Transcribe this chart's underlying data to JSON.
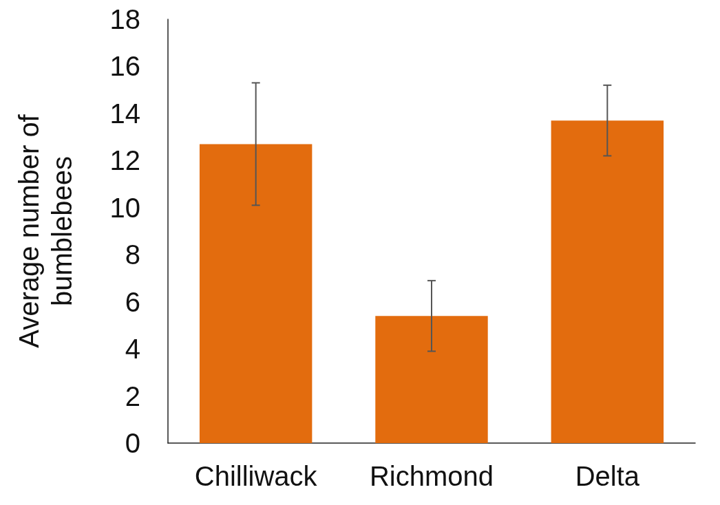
{
  "chart_data": {
    "type": "bar",
    "ylabel": "Average number of bumblebees",
    "categories": [
      "Chilliwack",
      "Richmond",
      "Delta"
    ],
    "values": [
      12.7,
      5.4,
      13.7
    ],
    "errors": [
      2.6,
      1.5,
      1.5
    ],
    "color": "#e36c0e",
    "ylim": [
      0,
      18
    ],
    "yticks": [
      0,
      2,
      4,
      6,
      8,
      10,
      12,
      14,
      16,
      18
    ],
    "grid": false
  }
}
